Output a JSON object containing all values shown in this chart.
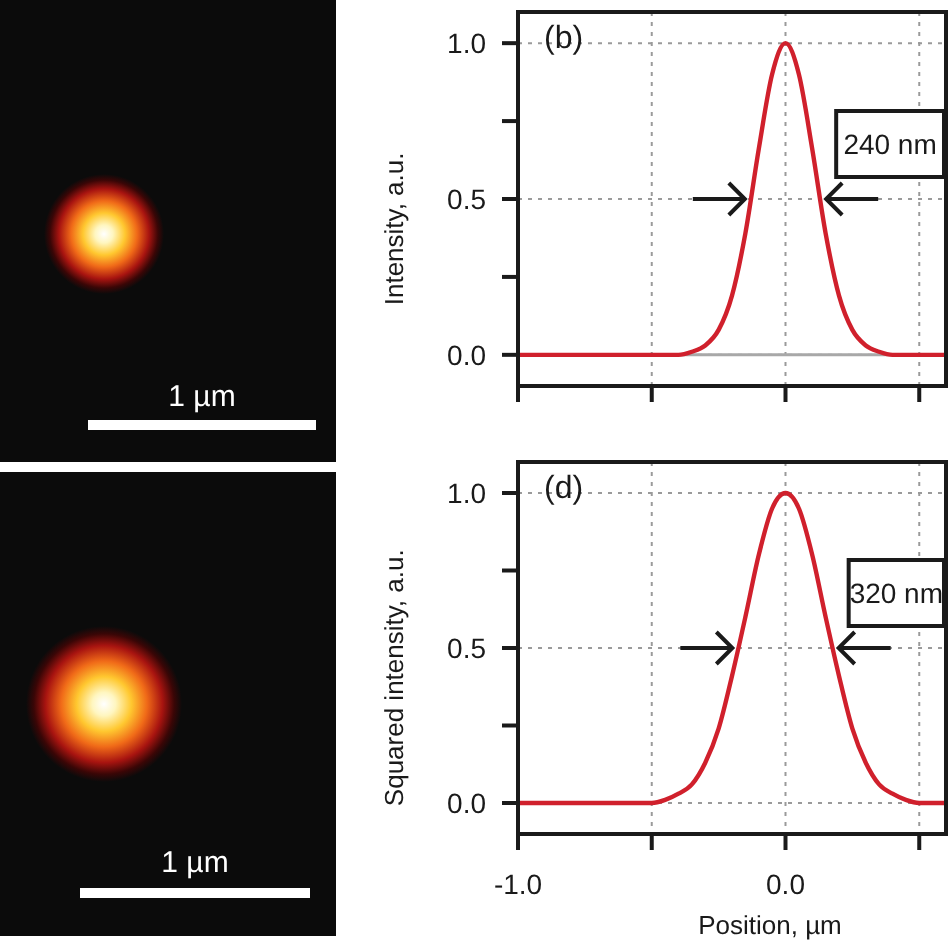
{
  "chart_data": [
    {
      "type": "other",
      "annotations": [
        "1 µm"
      ]
    },
    {
      "type": "line",
      "ylabel": "Intensity, a.u.",
      "x": [
        -1.0,
        -0.5,
        -0.45,
        -0.4,
        -0.35,
        -0.3,
        -0.25,
        -0.2,
        -0.15,
        -0.1,
        -0.05,
        0,
        0.05,
        0.1,
        0.15,
        0.2,
        0.25,
        0.3,
        0.35,
        0.4,
        0.45,
        0.5,
        0.6
      ],
      "series": [
        {
          "color": "#d0202c",
          "values": [
            0,
            0,
            0,
            0,
            0.01,
            0.03,
            0.08,
            0.19,
            0.39,
            0.66,
            0.9,
            1.0,
            0.9,
            0.66,
            0.39,
            0.19,
            0.08,
            0.03,
            0.01,
            0,
            0,
            0,
            0
          ]
        }
      ],
      "xlim": [
        -1.0,
        0.6
      ],
      "xticks": [
        {
          "value": -1,
          "label": null
        },
        {
          "value": -0.5,
          "label": null
        },
        {
          "value": 0,
          "label": null
        },
        {
          "value": 0.5,
          "label": null
        }
      ],
      "ylim": [
        -0.1,
        1.1
      ],
      "yticks": [
        {
          "value": 0,
          "label": "0.0"
        },
        {
          "value": 0.25,
          "label": null
        },
        {
          "value": 0.5,
          "label": "0.5"
        },
        {
          "value": 0.75,
          "label": null
        },
        {
          "value": 1,
          "label": "1.0"
        }
      ],
      "grid": true,
      "tick_labels": "y",
      "ref_lines": [
        {
          "axis": "y",
          "value": 0,
          "color": "#a8a8a8"
        }
      ],
      "annotations": [
        "(b)",
        "240 nm"
      ]
    },
    {
      "type": "other",
      "annotations": [
        "1 µm"
      ]
    },
    {
      "type": "line",
      "xlabel": "Position, µm",
      "ylabel": "Squared intensity, a.u.",
      "x": [
        -1.0,
        -0.5,
        -0.45,
        -0.4,
        -0.35,
        -0.3,
        -0.25,
        -0.2,
        -0.15,
        -0.1,
        -0.05,
        0,
        0.05,
        0.1,
        0.15,
        0.2,
        0.25,
        0.3,
        0.35,
        0.4,
        0.45,
        0.5,
        0.6
      ],
      "series": [
        {
          "color": "#d0202c",
          "values": [
            0,
            0,
            0.01,
            0.03,
            0.06,
            0.13,
            0.24,
            0.41,
            0.6,
            0.8,
            0.95,
            1.0,
            0.95,
            0.8,
            0.6,
            0.41,
            0.24,
            0.13,
            0.06,
            0.03,
            0.01,
            0,
            0
          ]
        }
      ],
      "xlim": [
        -1.0,
        0.6
      ],
      "xticks": [
        {
          "value": -1,
          "label": "-1.0"
        },
        {
          "value": -0.5,
          "label": null
        },
        {
          "value": 0,
          "label": "0.0"
        },
        {
          "value": 0.5,
          "label": null
        }
      ],
      "ylim": [
        -0.1,
        1.1
      ],
      "yticks": [
        {
          "value": 0,
          "label": "0.0"
        },
        {
          "value": 0.25,
          "label": null
        },
        {
          "value": 0.5,
          "label": "0.5"
        },
        {
          "value": 0.75,
          "label": null
        },
        {
          "value": 1,
          "label": "1.0"
        }
      ],
      "grid": true,
      "annotations": [
        "(d)",
        "320 nm"
      ]
    }
  ]
}
